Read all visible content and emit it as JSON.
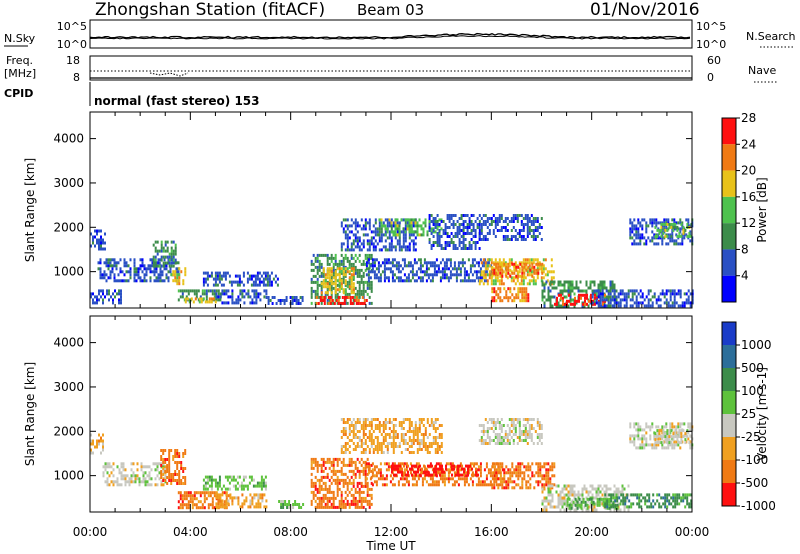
{
  "header": {
    "station": "Zhongshan Station (fitACF)",
    "beam": "Beam 03",
    "date": "01/Nov/2016"
  },
  "aux": {
    "nsky_label": "N.Sky",
    "nsearch_label": "N.Search",
    "freq_label_1": "Freq.",
    "freq_label_2": "[MHz]",
    "nave_label": "Nave",
    "cpid_label": "CPID",
    "cpid_text": "normal (fast stereo) 153",
    "noise_ticks": [
      "10^5",
      "10^0"
    ],
    "freq_ticks": [
      "18",
      "8"
    ],
    "nave_ticks": [
      "60",
      "0"
    ]
  },
  "chart_data": [
    {
      "type": "heatmap",
      "name": "power",
      "xlabel": "Time UT",
      "ylabel": "Slant Range [km]",
      "xlim": [
        0,
        24
      ],
      "ylim": [
        180,
        4600
      ],
      "xticks": [
        "00:00",
        "04:00",
        "08:00",
        "12:00",
        "16:00",
        "20:00",
        "00:00"
      ],
      "yticks": [
        1000,
        2000,
        3000,
        4000
      ],
      "colorbar": {
        "label": "Power [dB]",
        "ticks": [
          "4",
          "8",
          "12",
          "16",
          "20",
          "24",
          "28"
        ],
        "colors": [
          "#0000ff",
          "#2a50c4",
          "#3c8c4a",
          "#4ec24e",
          "#e8c21a",
          "#f07a14",
          "#ff1010"
        ]
      },
      "regions": [
        {
          "t0": 0.0,
          "t1": 0.6,
          "r0": 1500,
          "r1": 1950,
          "lvl": 1
        },
        {
          "t0": 0.3,
          "t1": 3.5,
          "r0": 800,
          "r1": 1300,
          "lvl": 1
        },
        {
          "t0": 2.5,
          "t1": 3.4,
          "r0": 1100,
          "r1": 1700,
          "lvl": 2
        },
        {
          "t0": 3.2,
          "t1": 3.8,
          "r0": 700,
          "r1": 1100,
          "lvl": 4
        },
        {
          "t0": 0.0,
          "t1": 1.2,
          "r0": 300,
          "r1": 600,
          "lvl": 1
        },
        {
          "t0": 3.5,
          "t1": 5.2,
          "r0": 350,
          "r1": 600,
          "lvl": 2
        },
        {
          "t0": 3.7,
          "t1": 5.0,
          "r0": 300,
          "r1": 420,
          "lvl": 4
        },
        {
          "t0": 4.5,
          "t1": 7.5,
          "r0": 700,
          "r1": 1000,
          "lvl": 1
        },
        {
          "t0": 5.0,
          "t1": 7.0,
          "r0": 300,
          "r1": 600,
          "lvl": 1
        },
        {
          "t0": 7.0,
          "t1": 8.5,
          "r0": 250,
          "r1": 450,
          "lvl": 1
        },
        {
          "t0": 8.8,
          "t1": 11.2,
          "r0": 300,
          "r1": 1400,
          "lvl": 2
        },
        {
          "t0": 9.2,
          "t1": 10.5,
          "r0": 500,
          "r1": 1100,
          "lvl": 4
        },
        {
          "t0": 9.0,
          "t1": 11.0,
          "r0": 250,
          "r1": 450,
          "lvl": 6
        },
        {
          "t0": 10.0,
          "t1": 13.0,
          "r0": 1500,
          "r1": 2200,
          "lvl": 1
        },
        {
          "t0": 11.5,
          "t1": 14.0,
          "r0": 1800,
          "r1": 2200,
          "lvl": 3
        },
        {
          "t0": 11.0,
          "t1": 16.0,
          "r0": 800,
          "r1": 1300,
          "lvl": 1
        },
        {
          "t0": 13.5,
          "t1": 15.5,
          "r0": 1500,
          "r1": 2300,
          "lvl": 1
        },
        {
          "t0": 15.5,
          "t1": 18.0,
          "r0": 1700,
          "r1": 2300,
          "lvl": 1
        },
        {
          "t0": 15.5,
          "t1": 18.5,
          "r0": 700,
          "r1": 1300,
          "lvl": 4
        },
        {
          "t0": 16.0,
          "t1": 18.0,
          "r0": 900,
          "r1": 1200,
          "lvl": 5
        },
        {
          "t0": 16.0,
          "t1": 17.5,
          "r0": 350,
          "r1": 650,
          "lvl": 5
        },
        {
          "t0": 18.0,
          "t1": 21.0,
          "r0": 250,
          "r1": 800,
          "lvl": 2
        },
        {
          "t0": 18.5,
          "t1": 20.5,
          "r0": 250,
          "r1": 500,
          "lvl": 6
        },
        {
          "t0": 20.0,
          "t1": 24.0,
          "r0": 250,
          "r1": 600,
          "lvl": 1
        },
        {
          "t0": 21.5,
          "t1": 24.0,
          "r0": 1600,
          "r1": 2200,
          "lvl": 1
        },
        {
          "t0": 22.5,
          "t1": 24.0,
          "r0": 1800,
          "r1": 2100,
          "lvl": 3
        }
      ]
    },
    {
      "type": "heatmap",
      "name": "velocity",
      "xlabel": "Time UT",
      "ylabel": "Slant Range [km]",
      "xlim": [
        0,
        24
      ],
      "ylim": [
        180,
        4600
      ],
      "xticks": [
        "00:00",
        "04:00",
        "08:00",
        "12:00",
        "16:00",
        "20:00",
        "00:00"
      ],
      "yticks": [
        1000,
        2000,
        3000,
        4000
      ],
      "colorbar": {
        "label": "Velocity [m s-1]",
        "ticks": [
          "1000",
          "500",
          "100",
          "25",
          "-25",
          "-100",
          "-500",
          "-1000"
        ],
        "colors": [
          "#1a3cc8",
          "#2c6e9a",
          "#3c8c4a",
          "#5ec23c",
          "#c8c8c0",
          "#f0a020",
          "#f07a14",
          "#ff1010"
        ]
      },
      "regions": [
        {
          "t0": 0.0,
          "t1": 0.5,
          "r0": 1500,
          "r1": 1950,
          "lvl": 5
        },
        {
          "t0": 0.5,
          "t1": 3.0,
          "r0": 800,
          "r1": 1300,
          "lvl": 4
        },
        {
          "t0": 2.8,
          "t1": 3.8,
          "r0": 800,
          "r1": 1600,
          "lvl": 6
        },
        {
          "t0": 3.5,
          "t1": 5.5,
          "r0": 300,
          "r1": 650,
          "lvl": 6
        },
        {
          "t0": 4.5,
          "t1": 7.0,
          "r0": 700,
          "r1": 1000,
          "lvl": 3
        },
        {
          "t0": 5.0,
          "t1": 7.0,
          "r0": 300,
          "r1": 600,
          "lvl": 5
        },
        {
          "t0": 7.5,
          "t1": 8.5,
          "r0": 250,
          "r1": 450,
          "lvl": 3
        },
        {
          "t0": 8.8,
          "t1": 11.2,
          "r0": 300,
          "r1": 1400,
          "lvl": 6
        },
        {
          "t0": 10.0,
          "t1": 14.0,
          "r0": 1500,
          "r1": 2300,
          "lvl": 5
        },
        {
          "t0": 11.0,
          "t1": 16.5,
          "r0": 800,
          "r1": 1300,
          "lvl": 6
        },
        {
          "t0": 12.0,
          "t1": 15.5,
          "r0": 1000,
          "r1": 1250,
          "lvl": 7
        },
        {
          "t0": 15.5,
          "t1": 18.0,
          "r0": 1700,
          "r1": 2300,
          "lvl": 4
        },
        {
          "t0": 16.0,
          "t1": 18.5,
          "r0": 700,
          "r1": 1300,
          "lvl": 6
        },
        {
          "t0": 18.0,
          "t1": 21.5,
          "r0": 250,
          "r1": 800,
          "lvl": 4
        },
        {
          "t0": 19.0,
          "t1": 21.0,
          "r0": 250,
          "r1": 500,
          "lvl": 3
        },
        {
          "t0": 20.5,
          "t1": 24.0,
          "r0": 300,
          "r1": 600,
          "lvl": 2
        },
        {
          "t0": 21.5,
          "t1": 24.0,
          "r0": 1600,
          "r1": 2200,
          "lvl": 4
        },
        {
          "t0": 22.5,
          "t1": 24.0,
          "r0": 1750,
          "r1": 2050,
          "lvl": 4
        }
      ]
    }
  ]
}
